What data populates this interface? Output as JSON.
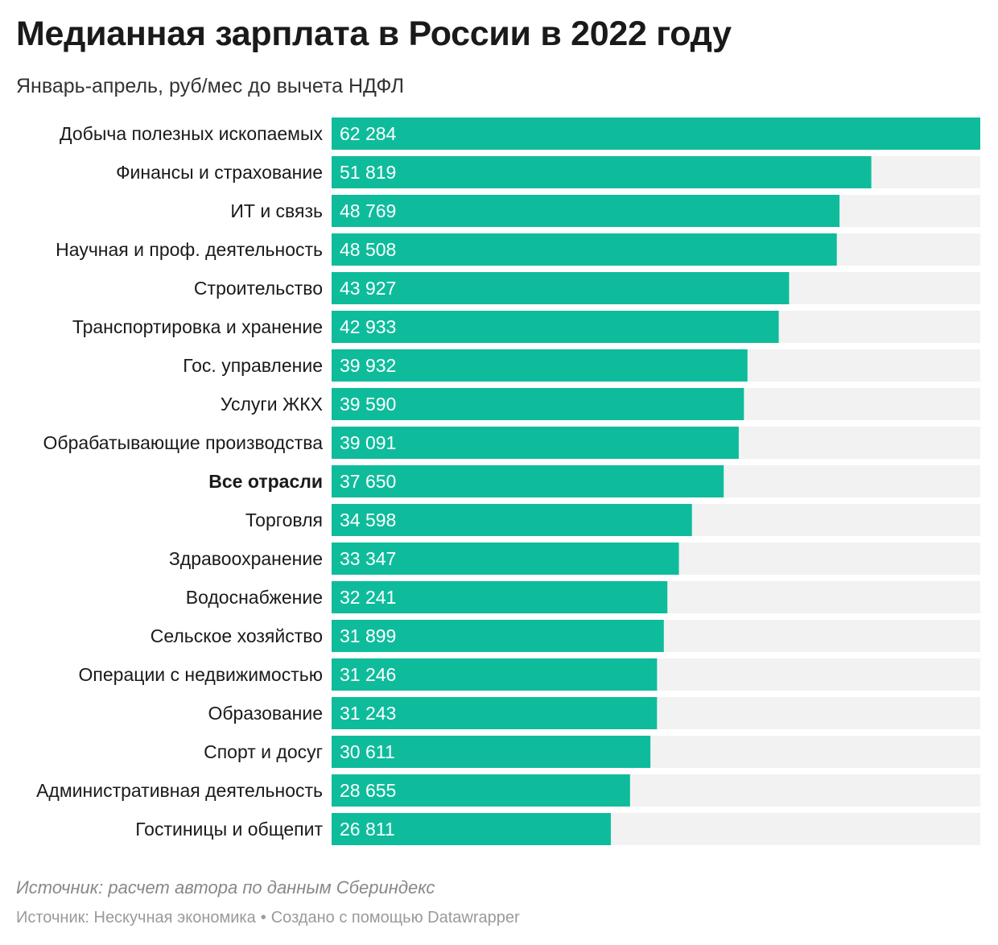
{
  "header": {
    "title": "Медианная зарплата в России в 2022 году",
    "subtitle": "Январь-апрель, руб/мес до вычета НДФЛ"
  },
  "colors": {
    "bar": "#0ebc9c",
    "track": "#f2f2f2"
  },
  "chart_data": {
    "type": "bar",
    "orientation": "horizontal",
    "title": "Медианная зарплата в России в 2022 году",
    "subtitle": "Январь-апрель, руб/мес до вычета НДФЛ",
    "xlim": [
      0,
      62284
    ],
    "highlight": "Все отрасли",
    "categories": [
      "Добыча полезных ископаемых",
      "Финансы и страхование",
      "ИТ и связь",
      "Научная и проф. деятельность",
      "Строительство",
      "Транспортировка и хранение",
      "Гос. управление",
      "Услуги ЖКХ",
      "Обрабатывающие производства",
      "Все отрасли",
      "Торговля",
      "Здравоохранение",
      "Водоснабжение",
      "Сельское хозяйство",
      "Операции с недвижимостью",
      "Образование",
      "Спорт и досуг",
      "Административная деятельность",
      "Гостиницы и общепит"
    ],
    "values": [
      62284,
      51819,
      48769,
      48508,
      43927,
      42933,
      39932,
      39590,
      39091,
      37650,
      34598,
      33347,
      32241,
      31899,
      31246,
      31243,
      30611,
      28655,
      26811
    ],
    "value_labels": [
      "62 284",
      "51 819",
      "48 769",
      "48 508",
      "43 927",
      "42 933",
      "39 932",
      "39 590",
      "39 091",
      "37 650",
      "34 598",
      "33 347",
      "32 241",
      "31 899",
      "31 246",
      "31 243",
      "30 611",
      "28 655",
      "26 811"
    ]
  },
  "notes": {
    "source_note": "Источник: расчет автора по данным Сбериндекс"
  },
  "footer": {
    "source": "Источник: Нескучная экономика",
    "separator": "•",
    "credit": "Создано с помощью Datawrapper"
  }
}
